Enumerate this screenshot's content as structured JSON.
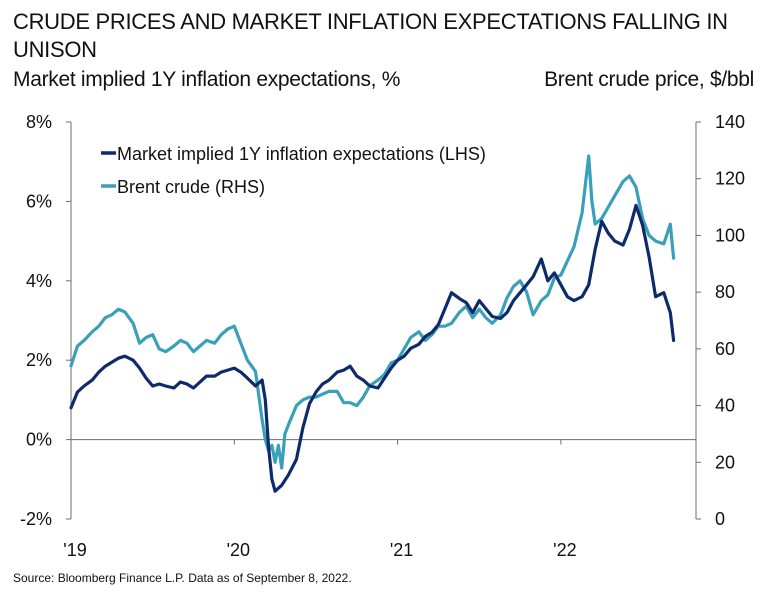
{
  "header": {
    "title": "CRUDE PRICES AND MARKET INFLATION EXPECTATIONS FALLING IN UNISON",
    "left_axis_subtitle": "Market implied 1Y inflation expectations, %",
    "right_axis_subtitle": "Brent crude price, $/bbl"
  },
  "footer": {
    "source": "Source: Bloomberg Finance L.P. Data as of September 8, 2022."
  },
  "chart_data": {
    "type": "line",
    "title": "CRUDE PRICES AND MARKET INFLATION EXPECTATIONS FALLING IN UNISON",
    "xlabel": "",
    "ylabel_left": "Market implied 1Y inflation expectations, %",
    "ylabel_right": "Brent crude price, $/bbl",
    "x_range": [
      2019.0,
      2022.69
    ],
    "x_ticks": [
      2019,
      2020,
      2021,
      2022
    ],
    "x_tick_labels": [
      "'19",
      "'20",
      "'21",
      "'22"
    ],
    "ylim_left": [
      -2,
      8
    ],
    "y_ticks_left": [
      -2,
      0,
      2,
      4,
      6,
      8
    ],
    "y_tick_labels_left": [
      "-2%",
      "0%",
      "2%",
      "4%",
      "6%",
      "8%"
    ],
    "ylim_right": [
      0,
      140
    ],
    "y_ticks_right": [
      0,
      20,
      40,
      60,
      80,
      100,
      120,
      140
    ],
    "y_tick_labels_right": [
      "0",
      "20",
      "40",
      "60",
      "80",
      "100",
      "120",
      "140"
    ],
    "grid": false,
    "zero_line": true,
    "legend": {
      "placement": "top-left",
      "entries": [
        {
          "label": "Market implied 1Y inflation expectations (LHS)",
          "color": "#0d2b6b"
        },
        {
          "label": "Brent crude (RHS)",
          "color": "#3a9fb8"
        }
      ]
    },
    "series": [
      {
        "name": "Market implied 1Y inflation expectations (LHS)",
        "axis": "left",
        "color": "#0d2b6b",
        "x": [
          2019.0,
          2019.04,
          2019.08,
          2019.13,
          2019.17,
          2019.21,
          2019.25,
          2019.29,
          2019.33,
          2019.38,
          2019.42,
          2019.46,
          2019.5,
          2019.54,
          2019.58,
          2019.63,
          2019.67,
          2019.71,
          2019.75,
          2019.79,
          2019.83,
          2019.88,
          2019.92,
          2019.96,
          2020.0,
          2020.04,
          2020.08,
          2020.13,
          2020.17,
          2020.19,
          2020.21,
          2020.23,
          2020.25,
          2020.29,
          2020.33,
          2020.38,
          2020.42,
          2020.46,
          2020.5,
          2020.54,
          2020.58,
          2020.63,
          2020.67,
          2020.71,
          2020.75,
          2020.79,
          2020.83,
          2020.88,
          2020.92,
          2020.96,
          2021.0,
          2021.04,
          2021.08,
          2021.13,
          2021.17,
          2021.21,
          2021.25,
          2021.29,
          2021.33,
          2021.38,
          2021.42,
          2021.46,
          2021.5,
          2021.54,
          2021.58,
          2021.63,
          2021.67,
          2021.71,
          2021.75,
          2021.79,
          2021.83,
          2021.88,
          2021.92,
          2021.96,
          2022.0,
          2022.04,
          2022.08,
          2022.13,
          2022.17,
          2022.21,
          2022.25,
          2022.29,
          2022.33,
          2022.38,
          2022.42,
          2022.46,
          2022.5,
          2022.54,
          2022.58,
          2022.63,
          2022.67,
          2022.69
        ],
        "values": [
          0.8,
          1.2,
          1.35,
          1.5,
          1.7,
          1.85,
          1.95,
          2.05,
          2.1,
          2.0,
          1.8,
          1.55,
          1.35,
          1.4,
          1.35,
          1.3,
          1.45,
          1.4,
          1.3,
          1.45,
          1.6,
          1.6,
          1.7,
          1.75,
          1.8,
          1.7,
          1.55,
          1.35,
          1.5,
          1.0,
          -0.2,
          -1.0,
          -1.3,
          -1.15,
          -0.9,
          -0.5,
          0.3,
          0.9,
          1.2,
          1.4,
          1.5,
          1.7,
          1.75,
          1.85,
          1.6,
          1.5,
          1.35,
          1.3,
          1.55,
          1.8,
          2.0,
          2.1,
          2.3,
          2.4,
          2.6,
          2.7,
          2.9,
          3.3,
          3.7,
          3.55,
          3.45,
          3.2,
          3.5,
          3.3,
          3.1,
          3.05,
          3.2,
          3.5,
          3.7,
          3.9,
          4.1,
          4.55,
          4.0,
          4.2,
          3.9,
          3.6,
          3.5,
          3.6,
          3.9,
          4.8,
          5.5,
          5.2,
          5.0,
          4.9,
          5.3,
          5.9,
          5.4,
          4.6,
          3.6,
          3.7,
          3.2,
          2.5
        ]
      },
      {
        "name": "Brent crude (RHS)",
        "axis": "right",
        "color": "#3a9fb8",
        "x": [
          2019.0,
          2019.04,
          2019.08,
          2019.13,
          2019.17,
          2019.21,
          2019.25,
          2019.29,
          2019.33,
          2019.38,
          2019.42,
          2019.46,
          2019.5,
          2019.54,
          2019.58,
          2019.63,
          2019.67,
          2019.71,
          2019.75,
          2019.79,
          2019.83,
          2019.88,
          2019.92,
          2019.96,
          2020.0,
          2020.04,
          2020.08,
          2020.13,
          2020.17,
          2020.19,
          2020.21,
          2020.23,
          2020.25,
          2020.27,
          2020.29,
          2020.31,
          2020.33,
          2020.38,
          2020.42,
          2020.46,
          2020.5,
          2020.54,
          2020.58,
          2020.63,
          2020.67,
          2020.71,
          2020.75,
          2020.79,
          2020.83,
          2020.88,
          2020.92,
          2020.96,
          2021.0,
          2021.04,
          2021.08,
          2021.13,
          2021.17,
          2021.21,
          2021.25,
          2021.29,
          2021.33,
          2021.38,
          2021.42,
          2021.46,
          2021.5,
          2021.54,
          2021.58,
          2021.63,
          2021.67,
          2021.71,
          2021.75,
          2021.79,
          2021.83,
          2021.88,
          2021.92,
          2021.96,
          2022.0,
          2022.04,
          2022.08,
          2022.13,
          2022.17,
          2022.19,
          2022.21,
          2022.25,
          2022.29,
          2022.33,
          2022.38,
          2022.42,
          2022.46,
          2022.5,
          2022.54,
          2022.58,
          2022.63,
          2022.67,
          2022.69
        ],
        "values": [
          54,
          61,
          63,
          66,
          68,
          71,
          72,
          74,
          73,
          69,
          62,
          64,
          65,
          60,
          59,
          61,
          63,
          62,
          59,
          61,
          63,
          62,
          65,
          67,
          68,
          62,
          56,
          52,
          35,
          28,
          24,
          26,
          20,
          26,
          18,
          30,
          33,
          40,
          42,
          43,
          43,
          44,
          45,
          45,
          41,
          41,
          40,
          43,
          47,
          49,
          51,
          55,
          56,
          60,
          64,
          66,
          63,
          65,
          68,
          68,
          69,
          73,
          75,
          71,
          74,
          71,
          69,
          72,
          78,
          82,
          84,
          80,
          72,
          77,
          79,
          85,
          86,
          91,
          96,
          108,
          128,
          112,
          104,
          106,
          110,
          114,
          119,
          121,
          117,
          106,
          100,
          98,
          97,
          104,
          92
        ]
      }
    ]
  }
}
